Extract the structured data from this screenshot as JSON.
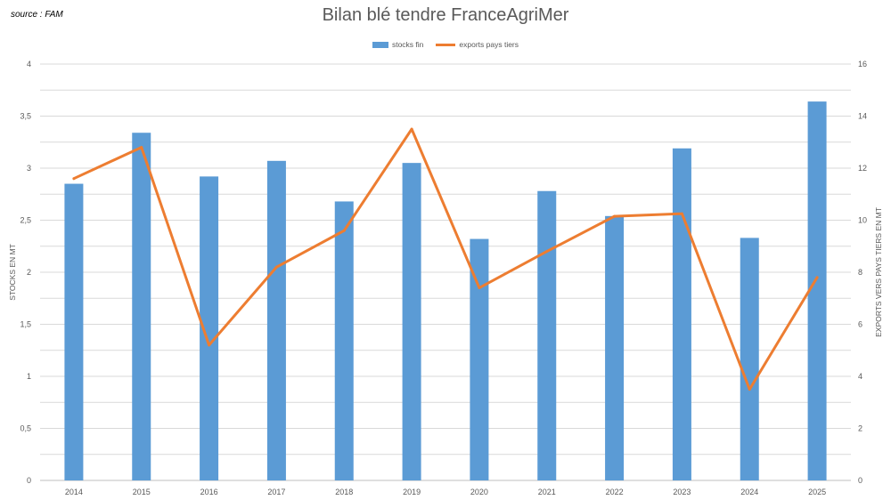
{
  "source_note": "source : FAM",
  "chart_data": {
    "type": "bar+line",
    "title": "Bilan blé tendre FranceAgriMer",
    "categories": [
      "2014",
      "2015",
      "2016",
      "2017",
      "2018",
      "2019",
      "2020",
      "2021",
      "2022",
      "2023",
      "2024",
      "2025"
    ],
    "series": [
      {
        "name": "stocks fin",
        "type": "bar",
        "axis": "left",
        "values": [
          2.85,
          3.34,
          2.92,
          3.07,
          2.68,
          3.05,
          2.32,
          2.78,
          2.54,
          3.19,
          2.33,
          3.64
        ]
      },
      {
        "name": "exports pays tiers",
        "type": "line",
        "axis": "right",
        "values": [
          11.6,
          12.8,
          5.2,
          8.2,
          9.6,
          13.5,
          7.4,
          8.8,
          10.15,
          10.25,
          3.5,
          7.8
        ]
      }
    ],
    "ylabel_left": "STOCKS EN MT",
    "ylabel_right": "EXPORTS VERS PAYS TIERS EN MT",
    "ylim_left": [
      0,
      4
    ],
    "ylim_right": [
      0,
      16
    ],
    "yticks_left": [
      "0",
      "0,5",
      "1",
      "1,5",
      "2",
      "2,5",
      "3",
      "3,5",
      "4"
    ],
    "yticks_right": [
      "0",
      "2",
      "4",
      "6",
      "8",
      "10",
      "12",
      "14",
      "16"
    ],
    "grid": true,
    "legend_position": "top",
    "colors": {
      "bars": "#5b9bd5",
      "line": "#ed7d31",
      "grid": "#d9d9d9"
    }
  }
}
